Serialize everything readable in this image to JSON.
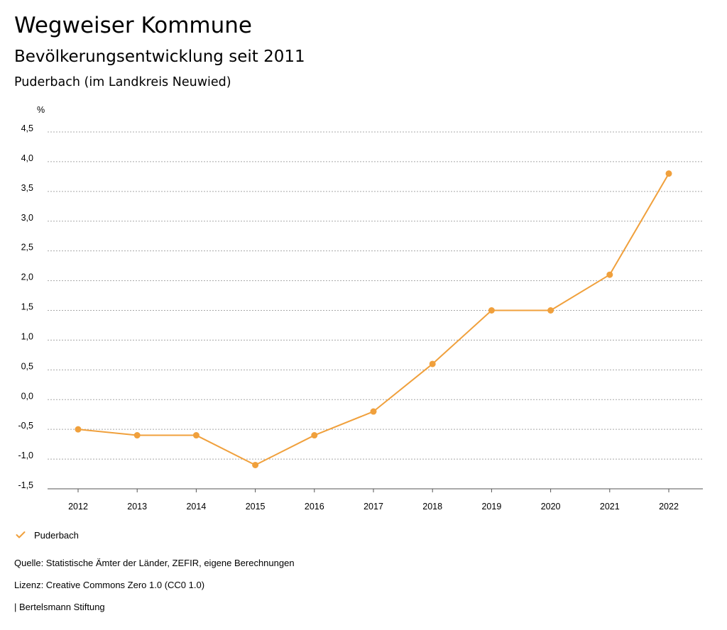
{
  "header": {
    "title": "Wegweiser Kommune",
    "subtitle": "Bevölkerungsentwicklung seit 2011",
    "place": "Puderbach (im Landkreis Neuwied)"
  },
  "chart_data": {
    "type": "line",
    "title": "Bevölkerungsentwicklung seit 2011",
    "xlabel": "",
    "ylabel": "%",
    "categories": [
      "2012",
      "2013",
      "2014",
      "2015",
      "2016",
      "2017",
      "2018",
      "2019",
      "2020",
      "2021",
      "2022"
    ],
    "series": [
      {
        "name": "Puderbach",
        "color": "#f0a03c",
        "values": [
          -0.5,
          -0.6,
          -0.6,
          -1.1,
          -0.6,
          -0.2,
          0.6,
          1.5,
          1.5,
          2.1,
          3.8
        ]
      }
    ],
    "ylim": [
      -1.5,
      4.5
    ],
    "yticks": [
      4.5,
      4.0,
      3.5,
      3.0,
      2.5,
      2.0,
      1.5,
      1.0,
      0.5,
      0.0,
      -0.5,
      -1.0,
      -1.5
    ],
    "ytick_labels": [
      "4,5",
      "4,0",
      "3,5",
      "3,0",
      "2,5",
      "2,0",
      "1,5",
      "1,0",
      "0,5",
      "0,0",
      "-0,5",
      "-1,0",
      "-1,5"
    ],
    "grid": true,
    "legend": "bottom-left"
  },
  "legend": {
    "label": "Puderbach",
    "icon": "check-icon"
  },
  "footer": {
    "source": "Quelle: Statistische Ämter der Länder, ZEFIR, eigene Berechnungen",
    "license": "Lizenz: Creative Commons Zero 1.0 (CC0 1.0)",
    "publisher": "| Bertelsmann Stiftung"
  }
}
